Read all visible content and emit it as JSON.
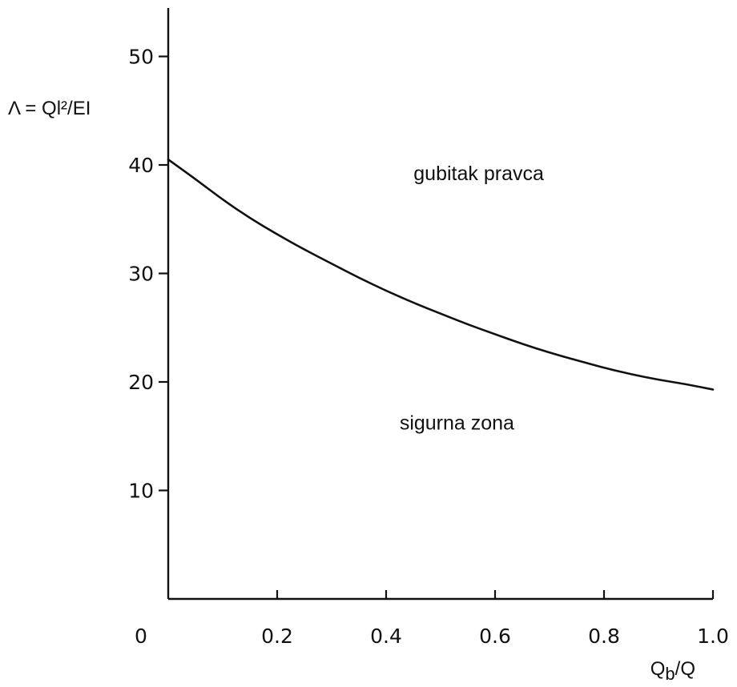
{
  "chart_data": {
    "type": "line",
    "title": "",
    "ylabel": "Λ = Ql²/EI",
    "xlabel": "Qb/Q",
    "xlim": [
      0,
      1.0
    ],
    "ylim": [
      0,
      55
    ],
    "x_ticks": [
      0,
      0.2,
      0.4,
      0.6,
      0.8,
      1.0
    ],
    "x_tick_labels": [
      "0",
      "0.2",
      "0.4",
      "0.6",
      "0.8",
      "1.0"
    ],
    "y_ticks": [
      10,
      20,
      30,
      40,
      50
    ],
    "y_tick_labels": [
      "10",
      "20",
      "30",
      "40",
      "50"
    ],
    "grid": false,
    "legend": "none",
    "line_color": "#111111",
    "annotations": [
      {
        "text": "gubitak pravca",
        "x": 0.57,
        "y": 38.6
      },
      {
        "text": "sigurna zona",
        "x": 0.53,
        "y": 15.6
      }
    ],
    "series": [
      {
        "x": [
          0.0,
          0.05,
          0.1,
          0.15,
          0.2,
          0.25,
          0.3,
          0.35,
          0.4,
          0.45,
          0.5,
          0.55,
          0.6,
          0.65,
          0.7,
          0.75,
          0.8,
          0.85,
          0.9,
          0.95,
          1.0
        ],
        "values": [
          40.5,
          38.7,
          36.8,
          35.1,
          33.6,
          32.2,
          30.9,
          29.6,
          28.4,
          27.3,
          26.3,
          25.3,
          24.4,
          23.5,
          22.7,
          22.0,
          21.3,
          20.7,
          20.2,
          19.8,
          19.3
        ]
      }
    ]
  }
}
